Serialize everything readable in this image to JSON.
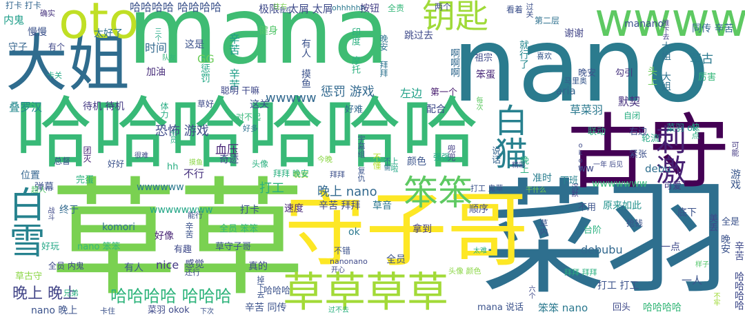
{
  "words": [
    {
      "t": "mana",
      "c": "#3fbc73"
    },
    {
      "t": "nano",
      "c": "#2b7b8e"
    },
    {
      "t": "菜羽",
      "c": "#2e6f8e"
    },
    {
      "t": "哈哈哈哈哈哈",
      "c": "#38b977"
    },
    {
      "t": "草草",
      "c": "#7ad151"
    },
    {
      "t": "大姐",
      "c": "#2f6c8e"
    },
    {
      "t": "守子哥",
      "c": "#fde725"
    },
    {
      "t": "草草草草",
      "c": "#a2da37"
    },
    {
      "t": "古守",
      "c": "#440154"
    },
    {
      "t": "白雪",
      "c": "#26828e"
    },
    {
      "t": "wwww",
      "c": "#5ec962"
    },
    {
      "t": "oto",
      "c": "#c0df25"
    },
    {
      "t": "白猫",
      "c": "#27808e"
    },
    {
      "t": "钥匙",
      "c": "#a0da39"
    },
    {
      "t": "笨笨",
      "c": "#5ec962"
    },
    {
      "t": "刺激",
      "c": "#482173"
    },
    {
      "t": "哈哈哈哈 哈哈哈哈",
      "c": "#3b528b"
    },
    {
      "t": "哈哈哈哈 哈哈哈",
      "c": "#2fb47c"
    },
    {
      "t": "晚上 nano",
      "c": "#31688e"
    },
    {
      "t": "晚上 晚上",
      "c": "#414487"
    },
    {
      "t": "恐怖 游戏",
      "c": "#3e4989"
    },
    {
      "t": "惩罚 游戏",
      "c": "#31688e"
    },
    {
      "t": "wwwww",
      "c": "#31688e"
    },
    {
      "t": "wwwwww",
      "c": "#2a788e"
    },
    {
      "t": "wwwwwww",
      "c": "#35b779"
    },
    {
      "t": "wwwwwwww",
      "c": "#21a585"
    },
    {
      "t": "叠罗汉",
      "c": "#23898e"
    },
    {
      "t": "待机 待机",
      "c": "#443983"
    },
    {
      "t": "内鬼",
      "c": "#1f9e89"
    },
    {
      "t": "慢慢",
      "c": "#3b528b"
    },
    {
      "t": "守子",
      "c": "#33638d"
    },
    {
      "t": "有个",
      "c": "#3f4788"
    },
    {
      "t": "太好了",
      "c": "#2d708e"
    },
    {
      "t": "确实",
      "c": "#46337e"
    },
    {
      "t": "打卡 打卡",
      "c": "#32658e"
    },
    {
      "t": "卡关",
      "c": "#22a884"
    },
    {
      "t": "加油",
      "c": "#472c7a"
    },
    {
      "t": "惩罚",
      "c": "#22a785"
    },
    {
      "t": "时间",
      "c": "#31688e"
    },
    {
      "t": "GG",
      "c": "#6ccd5a"
    },
    {
      "t": "这是",
      "c": "#3b528b"
    },
    {
      "t": "三个",
      "c": "#22a884"
    },
    {
      "t": "队友",
      "c": "#34b679"
    },
    {
      "t": "极限",
      "c": "#3e4989"
    },
    {
      "t": "太屑 太屑",
      "c": "#3e4a89"
    },
    {
      "t": "ohhhhhh",
      "c": "#2a788e"
    },
    {
      "t": "往右",
      "c": "#7ad151"
    },
    {
      "t": "健身",
      "c": "#52c569"
    },
    {
      "t": "辛苦 辛苦",
      "c": "#1f9e89"
    },
    {
      "t": "有人 摸鱼",
      "c": "#3b528b"
    },
    {
      "t": "按钮",
      "c": "#433e85"
    },
    {
      "t": "全责",
      "c": "#35b779"
    },
    {
      "t": "两个",
      "c": "#3f4889"
    },
    {
      "t": "跳过去",
      "c": "#3e4989"
    },
    {
      "t": "印度 摩托",
      "c": "#2ab07f"
    },
    {
      "t": "晚安 拜拜",
      "c": "#2c728e"
    },
    {
      "t": "啊啊啊",
      "c": "#31688e"
    },
    {
      "t": "祖宗",
      "c": "#3e4989"
    },
    {
      "t": "喜欢",
      "c": "#38598c"
    },
    {
      "t": "就行了",
      "c": "#24878e"
    },
    {
      "t": "笨蛋",
      "c": "#482878"
    },
    {
      "t": "第一个",
      "c": "#481d6f"
    },
    {
      "t": "左边",
      "c": "#1fa088"
    },
    {
      "t": "聪明 干嘛",
      "c": "#3f4889"
    },
    {
      "t": "体力",
      "c": "#25ab82"
    },
    {
      "t": "草好",
      "c": "#3e4989"
    },
    {
      "t": "这关",
      "c": "#3b528b"
    },
    {
      "t": "对不起",
      "c": "#35b779"
    },
    {
      "t": "好难",
      "c": "#30688e"
    },
    {
      "t": "好多",
      "c": "#2c718e"
    },
    {
      "t": "血压",
      "c": "#482475"
    },
    {
      "t": "不行",
      "c": "#46307e"
    },
    {
      "t": "准时",
      "c": "#287d8e"
    },
    {
      "t": "下班",
      "c": "#26828e"
    },
    {
      "t": "可爱",
      "c": "#443a83"
    },
    {
      "t": "debu",
      "c": "#2e6e8e"
    },
    {
      "t": "游戏",
      "c": "#39568c"
    },
    {
      "t": "可能",
      "c": "#443a83"
    },
    {
      "t": "紧张",
      "c": "#3c4f8a"
    },
    {
      "t": "轮流",
      "c": "#22a884"
    },
    {
      "t": "一年 后见",
      "c": "#3e4989"
    },
    {
      "t": "快点",
      "c": "#26ad81"
    },
    {
      "t": "右边",
      "c": "#3c4f8a"
    },
    {
      "t": "联动",
      "c": "#2ab07f"
    },
    {
      "t": "自闭",
      "c": "#27ad81"
    },
    {
      "t": "草菜羽",
      "c": "#2a788e"
    },
    {
      "t": "菜羽 ok",
      "c": "#1f988b"
    },
    {
      "t": "默契",
      "c": "#46307e"
    },
    {
      "t": "okok",
      "c": "#3e4a89"
    },
    {
      "t": "晚安",
      "c": "#3b528b"
    },
    {
      "t": "勾引",
      "c": "#46327e"
    },
    {
      "t": "头上",
      "c": "#6ece58"
    },
    {
      "t": "大姐 大姐",
      "c": "#2c728e"
    },
    {
      "t": "马里奥",
      "c": "#38588c"
    },
    {
      "t": "草古",
      "c": "#2a788e"
    },
    {
      "t": "厉害",
      "c": "#35b779"
    },
    {
      "t": "manano",
      "c": "#3b528b"
    },
    {
      "t": "同传 辛苦",
      "c": "#31688e"
    },
    {
      "t": "推下去",
      "c": "#433e85"
    },
    {
      "t": "过关",
      "c": "#3c4f8a"
    },
    {
      "t": "谢谢",
      "c": "#414487"
    },
    {
      "t": "第二层",
      "c": "#2d708e"
    },
    {
      "t": "看着",
      "c": "#3c508b"
    },
    {
      "t": "aria",
      "c": "#33638d"
    },
    {
      "t": "说话",
      "c": "#33638d"
    },
    {
      "t": "晚上",
      "c": "#2ab07f"
    },
    {
      "t": "精彩",
      "c": "#3e4989"
    },
    {
      "t": "每次",
      "c": "#5ec962"
    },
    {
      "t": "配合",
      "c": "#3e4989"
    },
    {
      "t": "兜兜",
      "c": "#433e85"
    },
    {
      "t": "颜色",
      "c": "#3a538b"
    },
    {
      "t": "晚安",
      "c": "#a0da39"
    },
    {
      "t": "拜拜",
      "c": "#3c4f8a"
    },
    {
      "t": "不懂",
      "c": "#b5de2b"
    },
    {
      "t": "不需",
      "c": "#2e6f8e"
    },
    {
      "t": "上啦",
      "c": "#22a785"
    },
    {
      "t": "宇幕组 复仇",
      "c": "#3a548c"
    },
    {
      "t": "强强",
      "c": "#22a785"
    },
    {
      "t": "今晚",
      "c": "#8bd646"
    },
    {
      "t": "奇迹",
      "c": "#3f4788"
    },
    {
      "t": "头像",
      "c": "#2ab07f"
    },
    {
      "t": "拜拜 晚安",
      "c": "#2ab07f"
    },
    {
      "t": "hh",
      "c": "#26ad81"
    },
    {
      "t": "摸鱼",
      "c": "#8bd646"
    },
    {
      "t": "全员",
      "c": "#25ab82"
    },
    {
      "t": "打工",
      "c": "#2ab07f"
    },
    {
      "t": "好好",
      "c": "#3b528b"
    },
    {
      "t": "很难",
      "c": "#3e4989"
    },
    {
      "t": "团灭",
      "c": "#482878"
    },
    {
      "t": "总督",
      "c": "#3b528b"
    },
    {
      "t": "位置",
      "c": "#32648e"
    },
    {
      "t": "完蛋",
      "c": "#2ab07f"
    },
    {
      "t": "弹幕",
      "c": "#3b528b"
    },
    {
      "t": "终于",
      "c": "#30698e"
    },
    {
      "t": "超人",
      "c": "#52c569"
    },
    {
      "t": "打工 鬼草",
      "c": "#3b528b"
    },
    {
      "t": "干什么",
      "c": "#7ad151"
    },
    {
      "t": "沉默",
      "c": "#433e85"
    },
    {
      "t": "不用",
      "c": "#3b528b"
    },
    {
      "t": "原来如此",
      "c": "#21918c"
    },
    {
      "t": "辛苦 拜拜",
      "c": "#3e4989"
    },
    {
      "t": "草音",
      "c": "#2b758e"
    },
    {
      "t": "顺序",
      "c": "#3e4989"
    },
    {
      "t": "速度",
      "c": "#482878"
    },
    {
      "t": "打卡",
      "c": "#3b528b"
    },
    {
      "t": "战斗",
      "c": "#3e4989"
    },
    {
      "t": "能行",
      "c": "#3b528b"
    },
    {
      "t": "全员 笨笨",
      "c": "#35b779"
    },
    {
      "t": "komori",
      "c": "#2d708e"
    },
    {
      "t": "辛苦",
      "c": "#3b528b"
    },
    {
      "t": "有趣",
      "c": "#3e4989"
    },
    {
      "t": "好像",
      "c": "#482475"
    },
    {
      "t": "nano 笨笨",
      "c": "#35b779"
    },
    {
      "t": "好玩",
      "c": "#22a785"
    },
    {
      "t": "草守子哥",
      "c": "#3b528b"
    },
    {
      "t": "nice",
      "c": "#443a83"
    },
    {
      "t": "感觉",
      "c": "#3e4989"
    },
    {
      "t": "有人",
      "c": "#3b528b"
    },
    {
      "t": "ok",
      "c": "#2a788e"
    },
    {
      "t": "拿到",
      "c": "#433e85"
    },
    {
      "t": "台阶",
      "c": "#2ab07f"
    },
    {
      "t": "抢钱",
      "c": "#3b528b"
    },
    {
      "t": "底下",
      "c": "#3b528b"
    },
    {
      "t": "全是",
      "c": "#3b528b"
    },
    {
      "t": "美丢",
      "c": "#3e4989"
    },
    {
      "t": "debubu",
      "c": "#31688e"
    },
    {
      "t": "草内",
      "c": "#3b528b"
    },
    {
      "t": "一点",
      "c": "#3e4989"
    },
    {
      "t": "晚安",
      "c": "#3b528b"
    },
    {
      "t": "一人",
      "c": "#3b528b"
    },
    {
      "t": "辛苦 哈哈哈哈",
      "c": "#3e4989"
    },
    {
      "t": "样子",
      "c": "#52c569"
    },
    {
      "t": "拜拜 拜拜",
      "c": "#2ab07f"
    },
    {
      "t": "太难",
      "c": "#2ab07f"
    },
    {
      "t": "不错",
      "c": "#3b528b"
    },
    {
      "t": "nanonano",
      "c": "#3e4989"
    },
    {
      "t": "全员",
      "c": "#3b528b"
    },
    {
      "t": "真的",
      "c": "#3e4989"
    },
    {
      "t": "开心",
      "c": "#3e4989"
    },
    {
      "t": "头像 颜色",
      "c": "#8bd646"
    },
    {
      "t": "全员 内鬼",
      "c": "#3e4989"
    },
    {
      "t": "草古守",
      "c": "#8bd646"
    },
    {
      "t": "兄弟",
      "c": "#2ab07f"
    },
    {
      "t": "还行",
      "c": "#3e4989"
    },
    {
      "t": "哈哈哈",
      "c": "#3b528b"
    },
    {
      "t": "掉下去",
      "c": "#3b528b"
    },
    {
      "t": "过不去",
      "c": "#2ab07f"
    },
    {
      "t": "打工 打工",
      "c": "#3b528b"
    },
    {
      "t": "回头",
      "c": "#3e4989"
    },
    {
      "t": "笨笨 nano",
      "c": "#2a788e"
    },
    {
      "t": "mana 说话",
      "c": "#3b528b"
    },
    {
      "t": "哈哈哈哈",
      "c": "#35b779"
    },
    {
      "t": "六个",
      "c": "#3e4989"
    },
    {
      "t": "不牢",
      "c": "#a0da39"
    },
    {
      "t": "nano 晚上",
      "c": "#3b528b"
    },
    {
      "t": "卡住",
      "c": "#3b528b"
    },
    {
      "t": "菜羽 okok",
      "c": "#3e4989"
    },
    {
      "t": "下次",
      "c": "#3b528b"
    },
    {
      "t": "辛苦 同传",
      "c": "#3b528b"
    },
    {
      "t": "ww",
      "c": "#3e4989"
    },
    {
      "t": "我在",
      "c": "#3b528b"
    }
  ]
}
